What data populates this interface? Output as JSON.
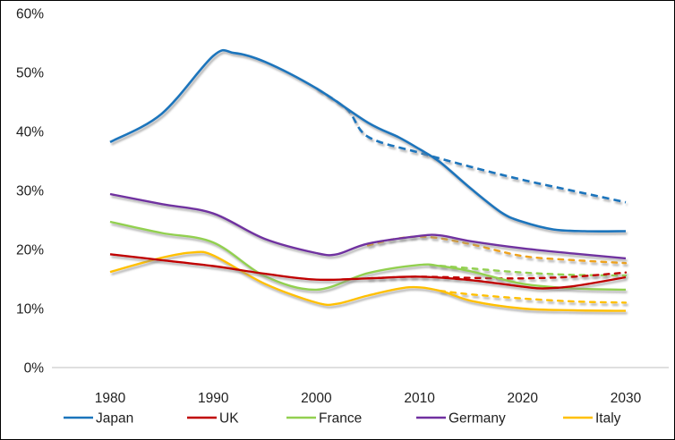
{
  "chart_data": {
    "type": "line",
    "title": "",
    "xlabel": "",
    "ylabel": "",
    "xlim": [
      1980,
      2030
    ],
    "ylim": [
      0,
      60
    ],
    "grid": false,
    "legend_position": "bottom",
    "x_ticks": [
      "1980",
      "1990",
      "2000",
      "2010",
      "2020",
      "2030"
    ],
    "x_tick_values": [
      1980,
      1990,
      2000,
      2010,
      2020,
      2030
    ],
    "y_ticks": [
      "60%",
      "50%",
      "40%",
      "30%",
      "20%",
      "10%",
      "0%"
    ],
    "y_tick_values": [
      60,
      50,
      40,
      30,
      20,
      10,
      0
    ],
    "axis_line_color": "#bfbfbf",
    "series": [
      {
        "name": "Japan",
        "color": "#1b75bc",
        "lines": [
          {
            "style": "solid",
            "points": [
              [
                1980,
                38.2
              ],
              [
                1985,
                43.0
              ],
              [
                1990,
                52.8
              ],
              [
                1992,
                53.3
              ],
              [
                1995,
                51.8
              ],
              [
                2000,
                47.3
              ],
              [
                2005,
                41.5
              ],
              [
                2008,
                39.0
              ],
              [
                2010,
                37.0
              ],
              [
                2012,
                34.8
              ],
              [
                2015,
                30.3
              ],
              [
                2018,
                26.2
              ],
              [
                2020,
                24.7
              ],
              [
                2023,
                23.4
              ],
              [
                2026,
                23.1
              ],
              [
                2030,
                23.1
              ]
            ]
          },
          {
            "style": "dashed",
            "points": [
              [
                2000,
                47.3
              ],
              [
                2003,
                43.7
              ],
              [
                2005,
                39.1
              ],
              [
                2010,
                36.4
              ],
              [
                2015,
                34.0
              ],
              [
                2020,
                31.8
              ],
              [
                2025,
                29.9
              ],
              [
                2030,
                28.0
              ]
            ]
          }
        ]
      },
      {
        "name": "UK",
        "color": "#c00000",
        "lines": [
          {
            "style": "solid",
            "points": [
              [
                1980,
                19.2
              ],
              [
                1985,
                18.2
              ],
              [
                1990,
                17.2
              ],
              [
                1995,
                15.9
              ],
              [
                2000,
                14.9
              ],
              [
                2005,
                15.1
              ],
              [
                2010,
                15.4
              ],
              [
                2015,
                14.8
              ],
              [
                2020,
                13.7
              ],
              [
                2022,
                13.4
              ],
              [
                2025,
                13.8
              ],
              [
                2030,
                15.3
              ]
            ]
          },
          {
            "style": "dashed",
            "points": [
              [
                2005,
                15.1
              ],
              [
                2010,
                15.4
              ],
              [
                2015,
                15.2
              ],
              [
                2020,
                15.1
              ],
              [
                2025,
                15.4
              ],
              [
                2030,
                16.1
              ]
            ]
          }
        ]
      },
      {
        "name": "France",
        "color": "#92d050",
        "lines": [
          {
            "style": "solid",
            "points": [
              [
                1980,
                24.7
              ],
              [
                1985,
                22.8
              ],
              [
                1990,
                21.2
              ],
              [
                1995,
                15.5
              ],
              [
                2000,
                13.2
              ],
              [
                2005,
                16.0
              ],
              [
                2010,
                17.4
              ],
              [
                2012,
                17.2
              ],
              [
                2015,
                16.3
              ],
              [
                2020,
                14.2
              ],
              [
                2025,
                13.4
              ],
              [
                2030,
                13.2
              ]
            ]
          },
          {
            "style": "dashed",
            "points": [
              [
                2011,
                17.4
              ],
              [
                2015,
                16.8
              ],
              [
                2020,
                16.1
              ],
              [
                2025,
                15.7
              ],
              [
                2030,
                15.6
              ]
            ]
          }
        ]
      },
      {
        "name": "Germany",
        "color": "#7030a0",
        "lines": [
          {
            "style": "solid",
            "points": [
              [
                1980,
                29.4
              ],
              [
                1985,
                27.7
              ],
              [
                1990,
                26.1
              ],
              [
                1995,
                21.8
              ],
              [
                2000,
                19.4
              ],
              [
                2002,
                19.2
              ],
              [
                2005,
                21.0
              ],
              [
                2010,
                22.3
              ],
              [
                2012,
                22.4
              ],
              [
                2015,
                21.4
              ],
              [
                2020,
                20.2
              ],
              [
                2025,
                19.3
              ],
              [
                2030,
                18.5
              ]
            ]
          }
        ]
      },
      {
        "name": "Italy",
        "color": "#ffc000",
        "lines": [
          {
            "style": "solid",
            "points": [
              [
                1980,
                16.2
              ],
              [
                1985,
                18.6
              ],
              [
                1988,
                19.5
              ],
              [
                1990,
                19.0
              ],
              [
                1995,
                14.2
              ],
              [
                2000,
                11.0
              ],
              [
                2002,
                10.8
              ],
              [
                2005,
                12.2
              ],
              [
                2009,
                13.6
              ],
              [
                2012,
                13.0
              ],
              [
                2015,
                11.3
              ],
              [
                2020,
                10.0
              ],
              [
                2025,
                9.7
              ],
              [
                2030,
                9.6
              ]
            ]
          },
          {
            "style": "dashed",
            "points": [
              [
                2012,
                13.0
              ],
              [
                2015,
                12.4
              ],
              [
                2020,
                11.7
              ],
              [
                2025,
                11.2
              ],
              [
                2030,
                11.0
              ]
            ]
          },
          {
            "style": "dashed",
            "color": "#efa31d",
            "variant": "upper",
            "points": [
              [
                2005,
                20.7
              ],
              [
                2008,
                21.9
              ],
              [
                2011,
                22.1
              ],
              [
                2015,
                20.9
              ],
              [
                2020,
                18.9
              ],
              [
                2025,
                18.2
              ],
              [
                2030,
                17.7
              ]
            ]
          }
        ]
      }
    ]
  },
  "legend": {
    "items": [
      {
        "label": "Japan",
        "color": "#1b75bc"
      },
      {
        "label": "UK",
        "color": "#c00000"
      },
      {
        "label": "France",
        "color": "#92d050"
      },
      {
        "label": "Germany",
        "color": "#7030a0"
      },
      {
        "label": "Italy",
        "color": "#ffc000"
      }
    ]
  }
}
